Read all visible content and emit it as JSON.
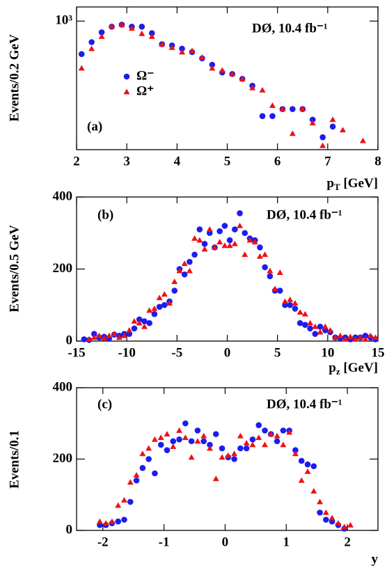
{
  "chart_data": [
    {
      "type": "scatter",
      "panel_label": "(a)",
      "annotation": "DØ, 10.4 fb⁻¹",
      "ylabel": "Events/0.2 GeV",
      "xlabel": {
        "text": "p",
        "sub": "T",
        "unit": " [GeV]"
      },
      "xlim": [
        2,
        8
      ],
      "ylim": [
        190,
        1200
      ],
      "log_y": true,
      "xticks": [
        2,
        3,
        4,
        5,
        6,
        7,
        8
      ],
      "yticks": [
        {
          "value": 1000,
          "label": "10³"
        }
      ],
      "x": [
        2.1,
        2.3,
        2.5,
        2.7,
        2.9,
        3.1,
        3.3,
        3.5,
        3.7,
        3.9,
        4.1,
        4.3,
        4.5,
        4.7,
        4.9,
        5.1,
        5.3,
        5.5,
        5.7,
        5.9,
        6.1,
        6.3,
        6.5,
        6.7,
        6.9,
        7.1,
        7.3,
        7.5,
        7.7,
        7.9
      ],
      "series": [
        {
          "name": "Ω⁻",
          "color": "#1c1cf0",
          "marker": "circle",
          "values": [
            653,
            762,
            865,
            930,
            955,
            930,
            930,
            855,
            742,
            730,
            700,
            670,
            618,
            569,
            515,
            505,
            474,
            434,
            293,
            293,
            321,
            321,
            321,
            280,
            223,
            256,
            null,
            null,
            null,
            null
          ]
        },
        {
          "name": "Ω⁺",
          "color": "#ee1111",
          "marker": "triangle",
          "values": [
            544,
            700,
            819,
            935,
            955,
            910,
            850,
            819,
            742,
            710,
            670,
            680,
            625,
            544,
            530,
            505,
            474,
            422,
            410,
            336,
            321,
            234,
            321,
            268,
            200,
            280,
            245,
            null,
            213,
            null
          ]
        }
      ]
    },
    {
      "type": "scatter",
      "panel_label": "(b)",
      "annotation": "DØ, 10.4 fb⁻¹",
      "ylabel": "Events/0.5 GeV",
      "xlabel": {
        "text": "p",
        "sub": "z",
        "unit": " [GeV]"
      },
      "xlim": [
        -15,
        15
      ],
      "ylim": [
        0,
        400
      ],
      "log_y": false,
      "xticks": [
        -15,
        -10,
        -5,
        0,
        5,
        10,
        15
      ],
      "yticks": [
        0,
        200,
        400
      ],
      "x": [
        -14.75,
        -14.25,
        -13.75,
        -13.25,
        -12.75,
        -12.25,
        -11.75,
        -11.25,
        -10.75,
        -10.25,
        -9.75,
        -9.25,
        -8.75,
        -8.25,
        -7.75,
        -7.25,
        -6.75,
        -6.25,
        -5.75,
        -5.25,
        -4.75,
        -4.25,
        -3.75,
        -3.25,
        -2.75,
        -2.25,
        -1.75,
        -1.25,
        -0.75,
        -0.25,
        0.25,
        0.75,
        1.25,
        1.75,
        2.25,
        2.75,
        3.25,
        3.75,
        4.25,
        4.75,
        5.25,
        5.75,
        6.25,
        6.75,
        7.25,
        7.75,
        8.25,
        8.75,
        9.25,
        9.75,
        10.25,
        10.75,
        11.25,
        11.75,
        12.25,
        12.75,
        13.25,
        13.75,
        14.25,
        14.75
      ],
      "series": [
        {
          "color": "#1c1cf0",
          "marker": "circle",
          "values": [
            null,
            5,
            3,
            20,
            10,
            12,
            8,
            18,
            15,
            20,
            20,
            35,
            60,
            55,
            50,
            75,
            95,
            100,
            110,
            140,
            200,
            185,
            220,
            240,
            310,
            270,
            300,
            260,
            305,
            320,
            280,
            310,
            355,
            300,
            285,
            280,
            260,
            205,
            180,
            140,
            140,
            100,
            100,
            90,
            50,
            45,
            35,
            20,
            40,
            30,
            25,
            10,
            8,
            10,
            5,
            10,
            10,
            15,
            10,
            5
          ]
        },
        {
          "color": "#ee1111",
          "marker": "triangle",
          "values": [
            null,
            null,
            5,
            10,
            15,
            8,
            15,
            20,
            10,
            15,
            30,
            55,
            50,
            40,
            85,
            90,
            120,
            130,
            105,
            165,
            195,
            215,
            195,
            285,
            280,
            255,
            310,
            260,
            275,
            265,
            265,
            270,
            320,
            240,
            280,
            275,
            235,
            240,
            195,
            145,
            190,
            110,
            115,
            105,
            80,
            75,
            50,
            40,
            25,
            40,
            30,
            10,
            15,
            5,
            12,
            5,
            10,
            5,
            15,
            10
          ]
        }
      ]
    },
    {
      "type": "scatter",
      "panel_label": "(c)",
      "annotation": "DØ, 10.4 fb⁻¹",
      "ylabel": "Events/0.1",
      "xlabel": {
        "text": "y"
      },
      "xlim": [
        -2.43,
        2.5
      ],
      "ylim": [
        0,
        400
      ],
      "log_y": false,
      "xticks": [
        -2,
        -1,
        0,
        1,
        2
      ],
      "yticks": [
        0,
        200,
        400
      ],
      "x": [
        -2.45,
        -2.35,
        -2.25,
        -2.15,
        -2.05,
        -1.95,
        -1.85,
        -1.75,
        -1.65,
        -1.55,
        -1.45,
        -1.35,
        -1.25,
        -1.15,
        -1.05,
        -0.95,
        -0.85,
        -0.75,
        -0.65,
        -0.55,
        -0.45,
        -0.35,
        -0.25,
        -0.15,
        -0.05,
        0.05,
        0.15,
        0.25,
        0.35,
        0.45,
        0.55,
        0.65,
        0.75,
        0.85,
        0.95,
        1.05,
        1.15,
        1.25,
        1.35,
        1.45,
        1.55,
        1.65,
        1.75,
        1.85,
        1.95,
        2.05,
        2.15,
        2.25,
        2.35,
        2.45
      ],
      "series": [
        {
          "color": "#1c1cf0",
          "marker": "circle",
          "values": [
            null,
            null,
            null,
            null,
            15,
            15,
            20,
            25,
            30,
            80,
            140,
            175,
            200,
            160,
            240,
            225,
            250,
            255,
            300,
            250,
            280,
            250,
            240,
            270,
            230,
            205,
            200,
            230,
            230,
            255,
            295,
            280,
            270,
            250,
            280,
            280,
            225,
            195,
            185,
            180,
            50,
            30,
            25,
            15,
            5,
            null,
            null,
            null,
            null,
            null
          ]
        },
        {
          "color": "#ee1111",
          "marker": "triangle",
          "values": [
            null,
            null,
            null,
            null,
            25,
            20,
            25,
            70,
            85,
            135,
            155,
            215,
            230,
            255,
            260,
            270,
            235,
            280,
            260,
            205,
            250,
            265,
            230,
            145,
            205,
            210,
            215,
            265,
            245,
            240,
            260,
            240,
            270,
            265,
            240,
            275,
            215,
            140,
            165,
            110,
            80,
            50,
            35,
            20,
            10,
            15,
            null,
            null,
            null,
            null
          ]
        }
      ]
    }
  ]
}
